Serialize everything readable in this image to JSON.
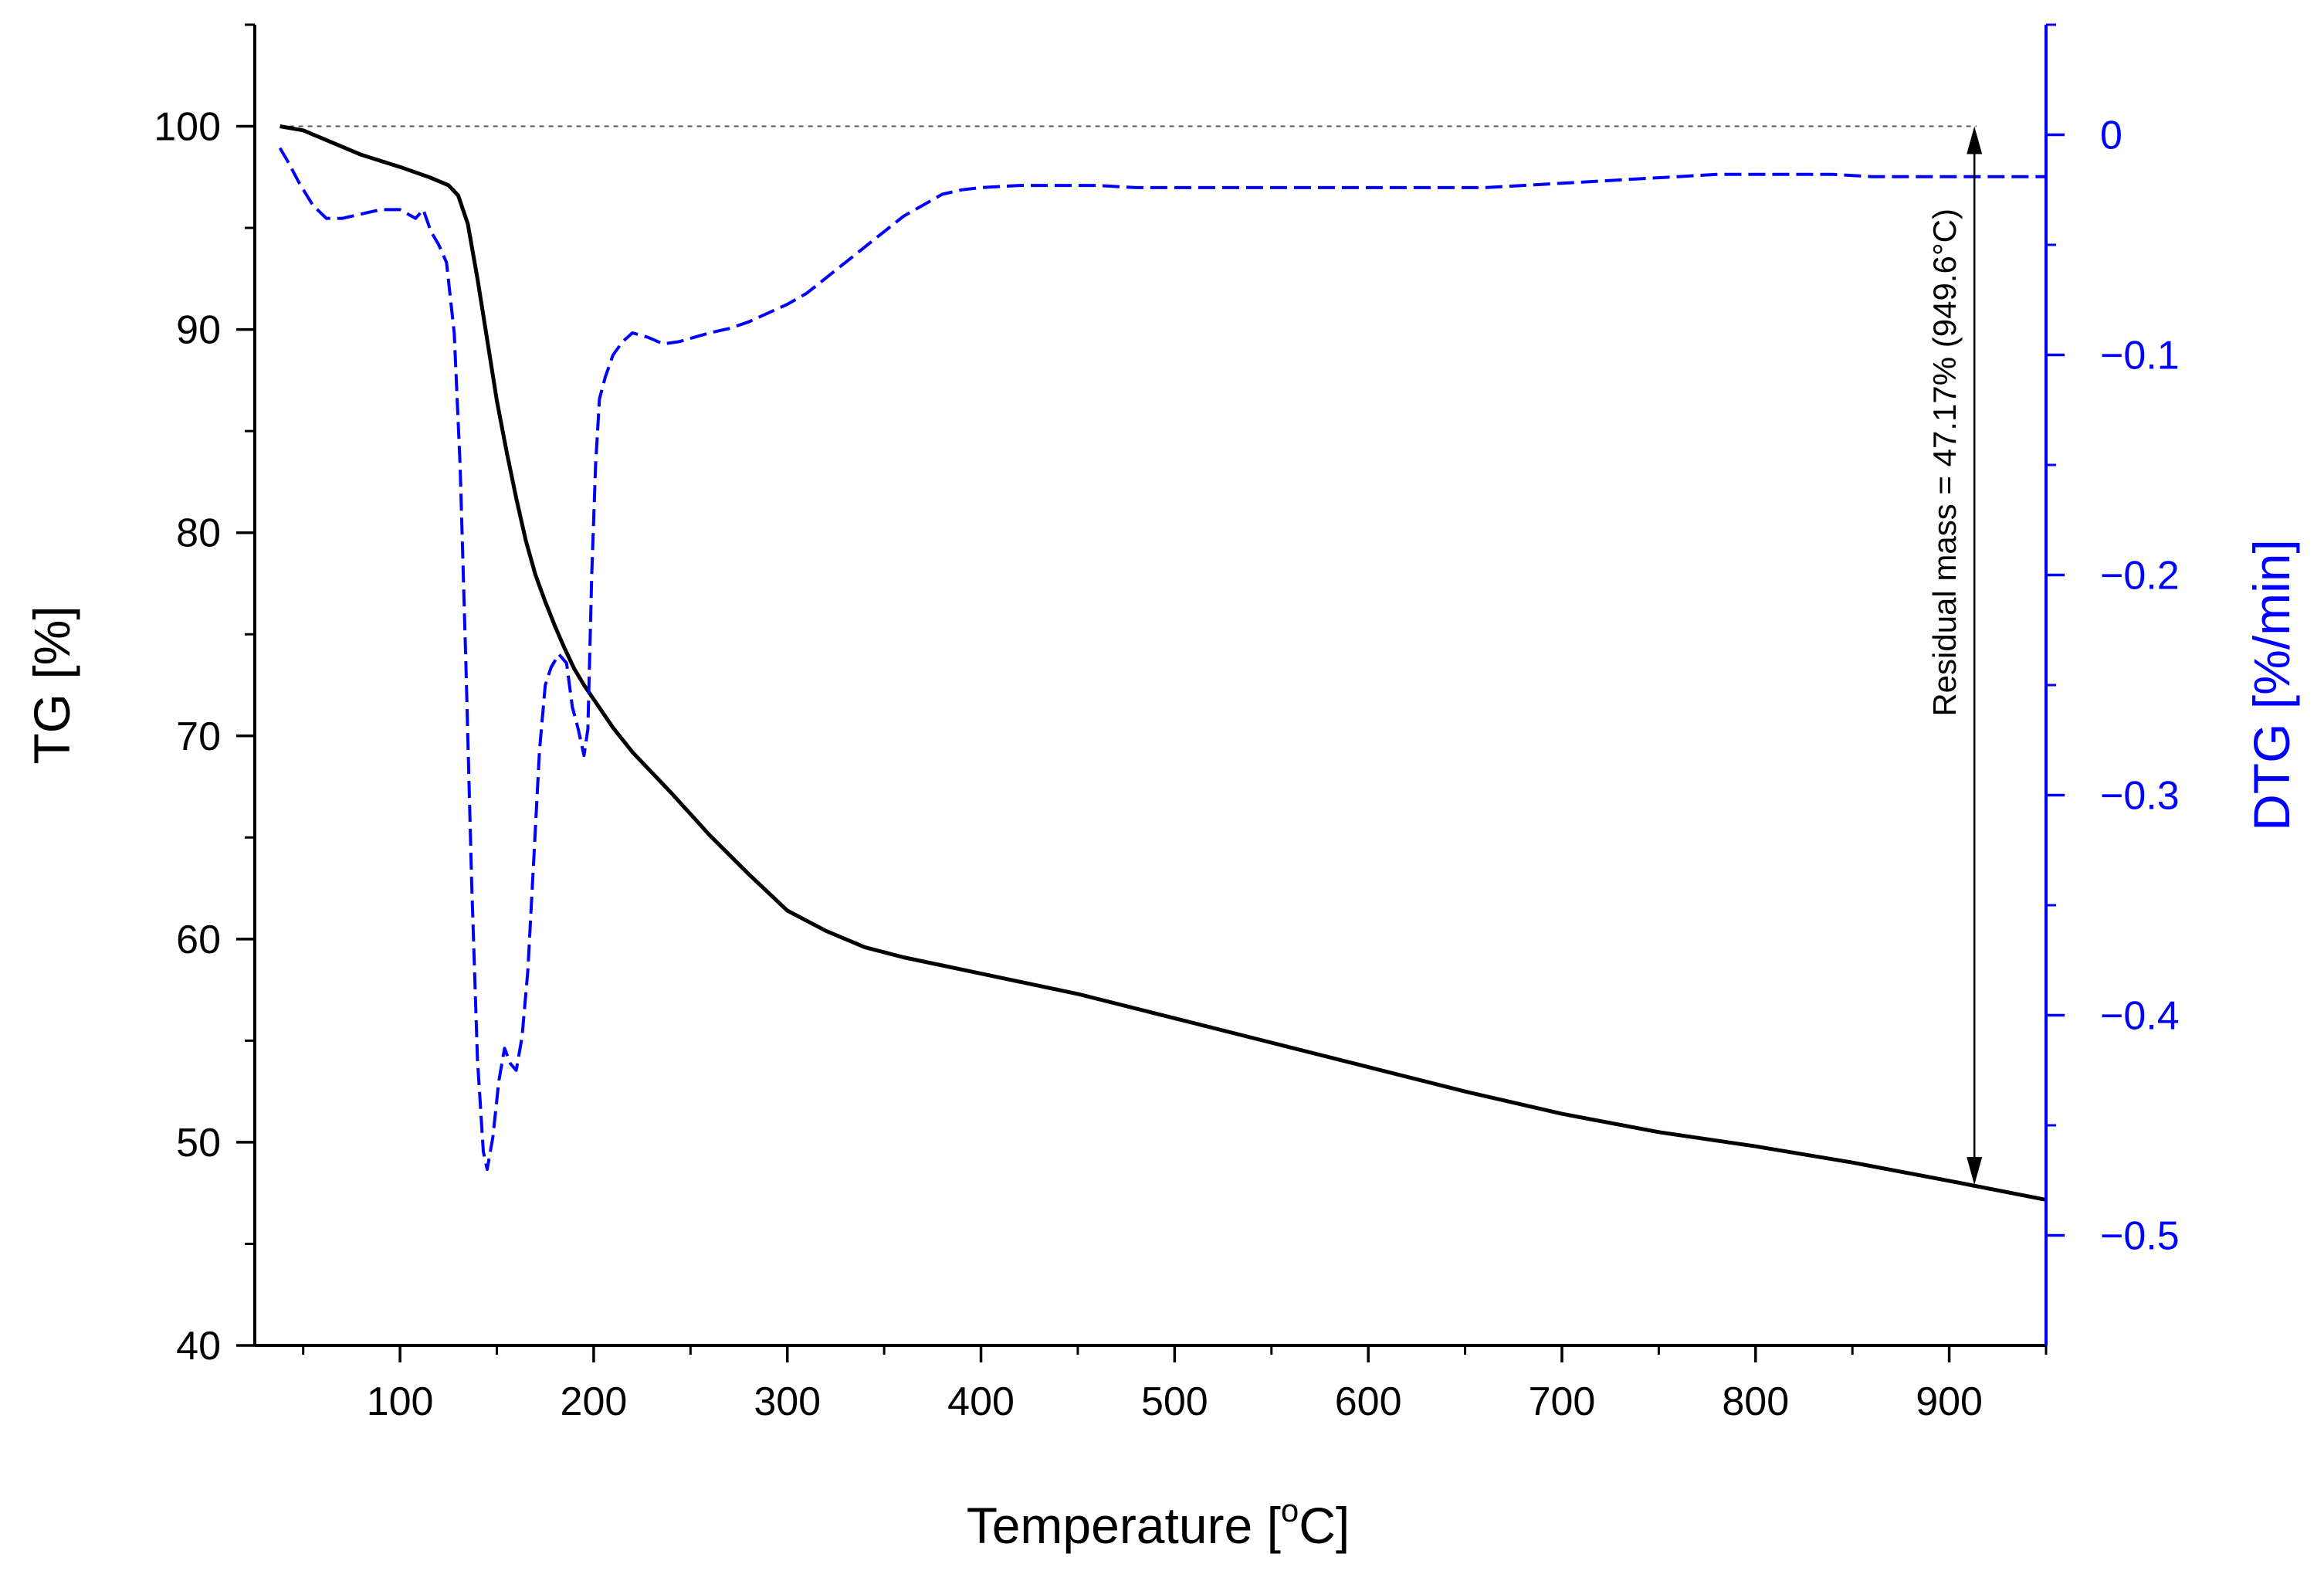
{
  "chart_data": {
    "type": "line",
    "title": "",
    "xlabel": "Temperature [",
    "xlabel_unit_sup": "o",
    "xlabel_unit_end": "C]",
    "ylabel": "TG [%]",
    "y2label": "DTG [%/min]",
    "xlim": [
      25,
      950
    ],
    "ylim": [
      40,
      105
    ],
    "y2lim": [
      -0.55,
      0.05
    ],
    "xticks": [
      100,
      200,
      300,
      400,
      500,
      600,
      700,
      800,
      900
    ],
    "xtick_labels": [
      "100",
      "200",
      "300",
      "400",
      "500",
      "600",
      "700",
      "800",
      "900"
    ],
    "yticks": [
      40,
      50,
      60,
      70,
      80,
      90,
      100
    ],
    "ytick_labels": [
      "40",
      "50",
      "60",
      "70",
      "80",
      "90",
      "100"
    ],
    "y2ticks": [
      0,
      -0.1,
      -0.2,
      -0.3,
      -0.4,
      -0.5
    ],
    "y2tick_labels": [
      "0",
      "−0.1",
      "−0.2",
      "−0.3",
      "−0.4",
      "−0.5"
    ],
    "reference_line_y": 100,
    "annotation": {
      "text": "Residual mass = 47.17% (949.6°C)",
      "x": 913,
      "y_top": 100,
      "y_bottom": 47.9
    },
    "colors": {
      "axis_left": "#000000",
      "axis_right": "#0000ff",
      "tg": "#000000",
      "dtg": "#0000ff",
      "reference": "#555555"
    },
    "series": [
      {
        "name": "TG",
        "axis": "left",
        "style": "solid",
        "x": [
          38,
          50,
          60,
          80,
          100,
          115,
          125,
          130,
          135,
          140,
          145,
          150,
          155,
          160,
          165,
          170,
          175,
          180,
          185,
          190,
          195,
          200,
          210,
          220,
          240,
          260,
          280,
          300,
          320,
          340,
          360,
          380,
          400,
          450,
          500,
          550,
          600,
          650,
          700,
          750,
          800,
          850,
          900,
          950
        ],
        "y": [
          100,
          99.8,
          99.4,
          98.6,
          98,
          97.5,
          97.1,
          96.6,
          95.2,
          92.5,
          89.5,
          86.5,
          84,
          81.7,
          79.6,
          77.9,
          76.6,
          75.4,
          74.3,
          73.3,
          72.5,
          71.8,
          70.4,
          69.2,
          67.2,
          65.1,
          63.2,
          61.4,
          60.4,
          59.6,
          59.1,
          58.7,
          58.3,
          57.3,
          56.1,
          54.9,
          53.7,
          52.5,
          51.4,
          50.5,
          49.8,
          49,
          48.1,
          47.17
        ]
      },
      {
        "name": "DTG",
        "axis": "right",
        "style": "dashed",
        "x": [
          38,
          42,
          48,
          55,
          62,
          70,
          80,
          90,
          100,
          108,
          112,
          116,
          120,
          124,
          128,
          131,
          134,
          137,
          140,
          143,
          145,
          148,
          151,
          154,
          157,
          160,
          163,
          166,
          169,
          172,
          175,
          178,
          182,
          186,
          189,
          192,
          195,
          197,
          199,
          201,
          203,
          206,
          210,
          215,
          220,
          228,
          236,
          244,
          252,
          260,
          270,
          280,
          290,
          300,
          310,
          320,
          330,
          340,
          350,
          360,
          370,
          380,
          390,
          400,
          420,
          440,
          460,
          480,
          500,
          520,
          540,
          560,
          580,
          600,
          620,
          640,
          660,
          680,
          700,
          720,
          740,
          760,
          780,
          800,
          820,
          840,
          860,
          880,
          900,
          920,
          950
        ],
        "y": [
          -0.006,
          -0.012,
          -0.022,
          -0.032,
          -0.038,
          -0.038,
          -0.036,
          -0.034,
          -0.034,
          -0.038,
          -0.034,
          -0.044,
          -0.05,
          -0.058,
          -0.09,
          -0.15,
          -0.24,
          -0.34,
          -0.42,
          -0.462,
          -0.47,
          -0.455,
          -0.43,
          -0.415,
          -0.422,
          -0.425,
          -0.41,
          -0.38,
          -0.33,
          -0.28,
          -0.25,
          -0.242,
          -0.236,
          -0.24,
          -0.26,
          -0.27,
          -0.282,
          -0.27,
          -0.2,
          -0.15,
          -0.12,
          -0.11,
          -0.1,
          -0.094,
          -0.09,
          -0.092,
          -0.095,
          -0.094,
          -0.092,
          -0.09,
          -0.088,
          -0.085,
          -0.081,
          -0.077,
          -0.072,
          -0.065,
          -0.058,
          -0.051,
          -0.044,
          -0.037,
          -0.032,
          -0.027,
          -0.025,
          -0.024,
          -0.023,
          -0.023,
          -0.023,
          -0.024,
          -0.024,
          -0.024,
          -0.024,
          -0.024,
          -0.024,
          -0.024,
          -0.024,
          -0.024,
          -0.024,
          -0.023,
          -0.022,
          -0.021,
          -0.02,
          -0.019,
          -0.018,
          -0.018,
          -0.018,
          -0.018,
          -0.019,
          -0.019,
          -0.019,
          -0.019,
          -0.019
        ]
      }
    ]
  }
}
